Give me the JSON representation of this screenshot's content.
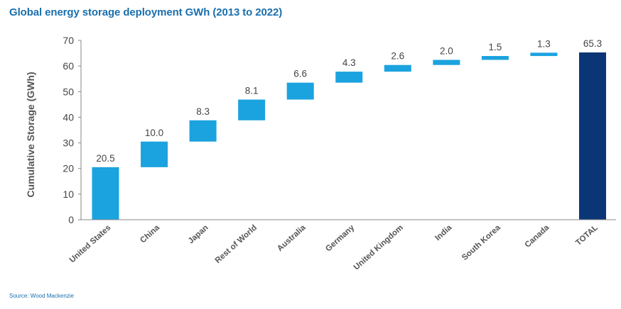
{
  "chart_data": {
    "type": "bar",
    "subtype": "waterfall",
    "title": "Global energy storage deployment GWh (2013 to 2022)",
    "xlabel": "",
    "ylabel": "Cumulative Storage (GWh)",
    "ylim": [
      0,
      70
    ],
    "yticks": [
      0,
      10,
      20,
      30,
      40,
      50,
      60,
      70
    ],
    "grid": false,
    "categories": [
      "United States",
      "China",
      "Japan",
      "Rest of World",
      "Australia",
      "Germany",
      "United Kingdom",
      "India",
      "South Korea",
      "Canada",
      "TOTAL"
    ],
    "values": [
      20.5,
      10.0,
      8.3,
      8.1,
      6.6,
      4.3,
      2.6,
      2.0,
      1.5,
      1.3,
      65.3
    ],
    "data_labels": [
      "20.5",
      "10.0",
      "8.3",
      "8.1",
      "6.6",
      "4.3",
      "2.6",
      "2.0",
      "1.5",
      "1.3",
      "65.3"
    ],
    "is_total": [
      false,
      false,
      false,
      false,
      false,
      false,
      false,
      false,
      false,
      false,
      true
    ],
    "colors": {
      "increment": "#1ba3df",
      "total": "#0b3676",
      "axis": "#888888"
    },
    "source": "Source: Wood Mackenzie"
  }
}
